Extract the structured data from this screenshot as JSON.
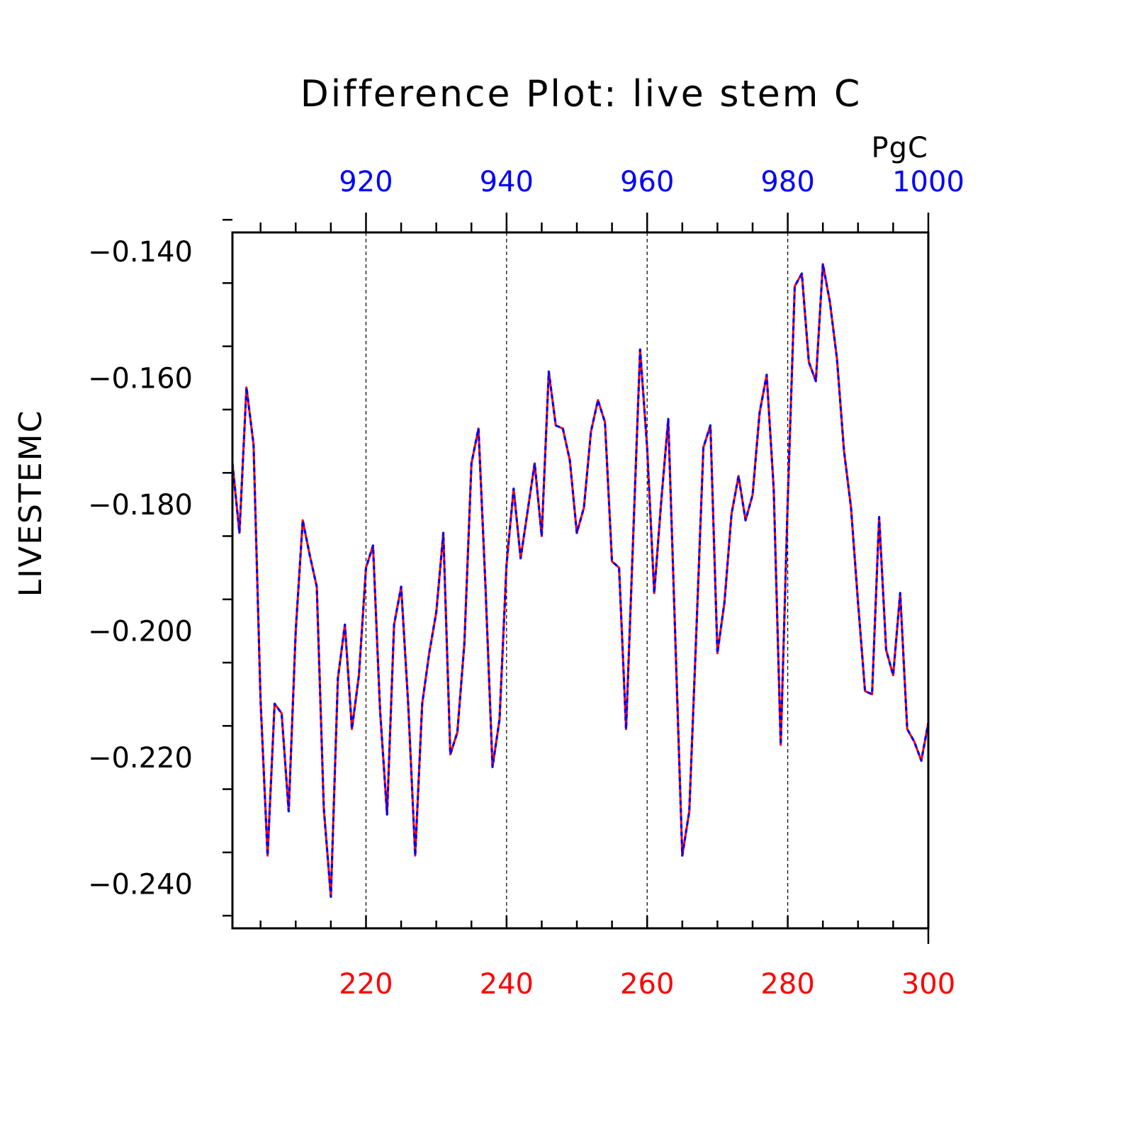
{
  "chart_data": {
    "type": "line",
    "title": "Difference Plot: live stem C",
    "units": "PgC",
    "ylabel": "LIVESTEMC",
    "xlim_bottom": [
      201,
      300
    ],
    "xlim_top": [
      901,
      1000
    ],
    "ylim": [
      -0.247,
      -0.137
    ],
    "bottom_x_ticks": [
      {
        "value": 220,
        "label": "220"
      },
      {
        "value": 240,
        "label": "240"
      },
      {
        "value": 260,
        "label": "260"
      },
      {
        "value": 280,
        "label": "280"
      },
      {
        "value": 300,
        "label": "300"
      }
    ],
    "top_x_ticks": [
      {
        "value": 920,
        "label": "920"
      },
      {
        "value": 940,
        "label": "940"
      },
      {
        "value": 960,
        "label": "960"
      },
      {
        "value": 980,
        "label": "980"
      },
      {
        "value": 1000,
        "label": "1000"
      }
    ],
    "y_ticks": [
      {
        "value": -0.14,
        "label": "−0.140"
      },
      {
        "value": -0.16,
        "label": "−0.160"
      },
      {
        "value": -0.18,
        "label": "−0.180"
      },
      {
        "value": -0.2,
        "label": "−0.200"
      },
      {
        "value": -0.22,
        "label": "−0.220"
      },
      {
        "value": -0.24,
        "label": "−0.240"
      }
    ],
    "grid": "vertical dashed at major x ticks",
    "colors": {
      "bottom_axis": "#ff0000",
      "top_axis": "#0000ff",
      "series_solid": "#ff0000",
      "series_dashed": "#0000ff",
      "frame": "#000000"
    },
    "series": [
      {
        "x": [
          201,
          202,
          203,
          204,
          205,
          206,
          207,
          208,
          209,
          210,
          211,
          212,
          213,
          214,
          215,
          216,
          217,
          218,
          219,
          220,
          221,
          222,
          223,
          224,
          225,
          226,
          227,
          228,
          229,
          230,
          231,
          232,
          233,
          234,
          235,
          236,
          237,
          238,
          239,
          240,
          241,
          242,
          243,
          244,
          245,
          246,
          247,
          248,
          249,
          250,
          251,
          252,
          253,
          254,
          255,
          256,
          257,
          258,
          259,
          260,
          261,
          262,
          263,
          264,
          265,
          266,
          267,
          268,
          269,
          270,
          271,
          272,
          273,
          274,
          275,
          276,
          277,
          278,
          279,
          280,
          281,
          282,
          283,
          284,
          285,
          286,
          287,
          288,
          289,
          290,
          291,
          292,
          293,
          294,
          295,
          296,
          297,
          298,
          299,
          300
        ],
        "y": [
          -0.1735,
          -0.1845,
          -0.1615,
          -0.1705,
          -0.211,
          -0.2355,
          -0.2115,
          -0.213,
          -0.2285,
          -0.2,
          -0.1825,
          -0.188,
          -0.193,
          -0.228,
          -0.242,
          -0.2075,
          -0.199,
          -0.2155,
          -0.207,
          -0.19,
          -0.1865,
          -0.2125,
          -0.229,
          -0.199,
          -0.193,
          -0.2115,
          -0.2355,
          -0.2115,
          -0.2035,
          -0.197,
          -0.1845,
          -0.2195,
          -0.216,
          -0.202,
          -0.1735,
          -0.168,
          -0.193,
          -0.2215,
          -0.214,
          -0.1895,
          -0.1775,
          -0.1885,
          -0.181,
          -0.1735,
          -0.185,
          -0.159,
          -0.1675,
          -0.168,
          -0.173,
          -0.1845,
          -0.1805,
          -0.1685,
          -0.1635,
          -0.167,
          -0.189,
          -0.19,
          -0.2155,
          -0.1855,
          -0.1555,
          -0.171,
          -0.194,
          -0.1795,
          -0.1665,
          -0.201,
          -0.2355,
          -0.2285,
          -0.2,
          -0.171,
          -0.1675,
          -0.2035,
          -0.1955,
          -0.1815,
          -0.1755,
          -0.1825,
          -0.1785,
          -0.1655,
          -0.1595,
          -0.1775,
          -0.218,
          -0.1795,
          -0.1455,
          -0.1435,
          -0.1575,
          -0.1605,
          -0.142,
          -0.148,
          -0.157,
          -0.1715,
          -0.1805,
          -0.1955,
          -0.2095,
          -0.21,
          -0.182,
          -0.203,
          -0.207,
          -0.194,
          -0.2155,
          -0.2175,
          -0.2205,
          -0.2145
        ]
      }
    ]
  }
}
